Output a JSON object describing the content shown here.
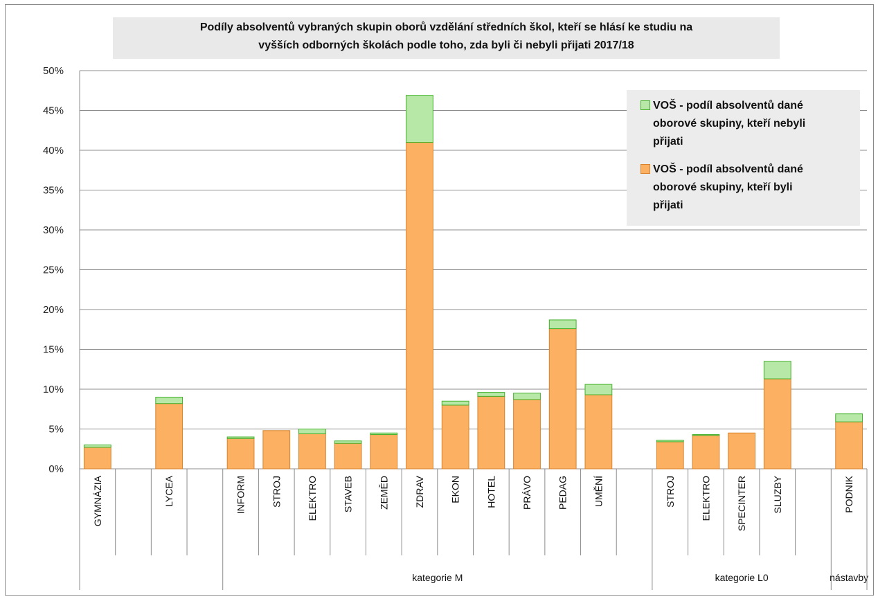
{
  "chart_data": {
    "type": "bar",
    "stacked": true,
    "title_lines": [
      "Podíly absolventů vybraných skupin oborů vzdělání středních škol, kteří se hlásí ke studiu na",
      "vyšších odborných školách podle toho, zda byli či nebyli přijati 2017/18"
    ],
    "y_ticks": [
      "0%",
      "5%",
      "10%",
      "15%",
      "20%",
      "25%",
      "30%",
      "35%",
      "40%",
      "45%",
      "50%"
    ],
    "ylim": [
      0,
      50
    ],
    "grid": true,
    "legend_position": "top-right",
    "categories": [
      "GYMNÁZIA",
      "",
      "LYCEA",
      "",
      "INFORM",
      "STROJ",
      "ELEKTRO",
      "STAVEB",
      "ZEMĚD",
      "ZDRAV",
      "EKON",
      "HOTEL",
      "PRÁVO",
      "PEDAG",
      "UMĚNÍ",
      "",
      "STROJ",
      "ELEKTRO",
      "SPECINTER",
      "SLUZBY",
      "",
      "PODNIK"
    ],
    "groups": [
      {
        "label": "",
        "start": 0,
        "end": 3
      },
      {
        "label": "kategorie M",
        "start": 4,
        "end": 15
      },
      {
        "label": "kategorie L0",
        "start": 16,
        "end": 20
      },
      {
        "label": "nástavby",
        "start": 21,
        "end": 21
      }
    ],
    "series": [
      {
        "name": "VOŠ - podíl absolventů dané oborové skupiny, kteří byli přijati",
        "color": "#fbb062",
        "edge": "#d9822b",
        "values": [
          2.7,
          null,
          8.2,
          null,
          3.8,
          4.8,
          4.4,
          3.2,
          4.3,
          41.0,
          8.0,
          9.1,
          8.7,
          17.6,
          9.3,
          null,
          3.4,
          4.2,
          4.5,
          11.3,
          null,
          5.9
        ]
      },
      {
        "name": "VOŠ - podíl absolventů dané oborové skupiny, kteří nebyli přijati",
        "color": "#b7e8a8",
        "edge": "#43b02a",
        "values": [
          0.3,
          null,
          0.8,
          null,
          0.2,
          0.0,
          0.6,
          0.3,
          0.2,
          5.9,
          0.5,
          0.5,
          0.8,
          1.1,
          1.3,
          null,
          0.2,
          0.1,
          0.0,
          2.2,
          null,
          1.0
        ]
      }
    ]
  },
  "legend": {
    "items": [
      {
        "lines": [
          "VOŠ - podíl absolventů dané",
          "oborové skupiny, kteří nebyli",
          "přijati"
        ],
        "color": "#b7e8a8",
        "edge": "#43b02a"
      },
      {
        "lines": [
          "VOŠ - podíl absolventů dané",
          "oborové skupiny, kteří byli",
          "přijati"
        ],
        "color": "#fbb062",
        "edge": "#d9822b"
      }
    ]
  }
}
